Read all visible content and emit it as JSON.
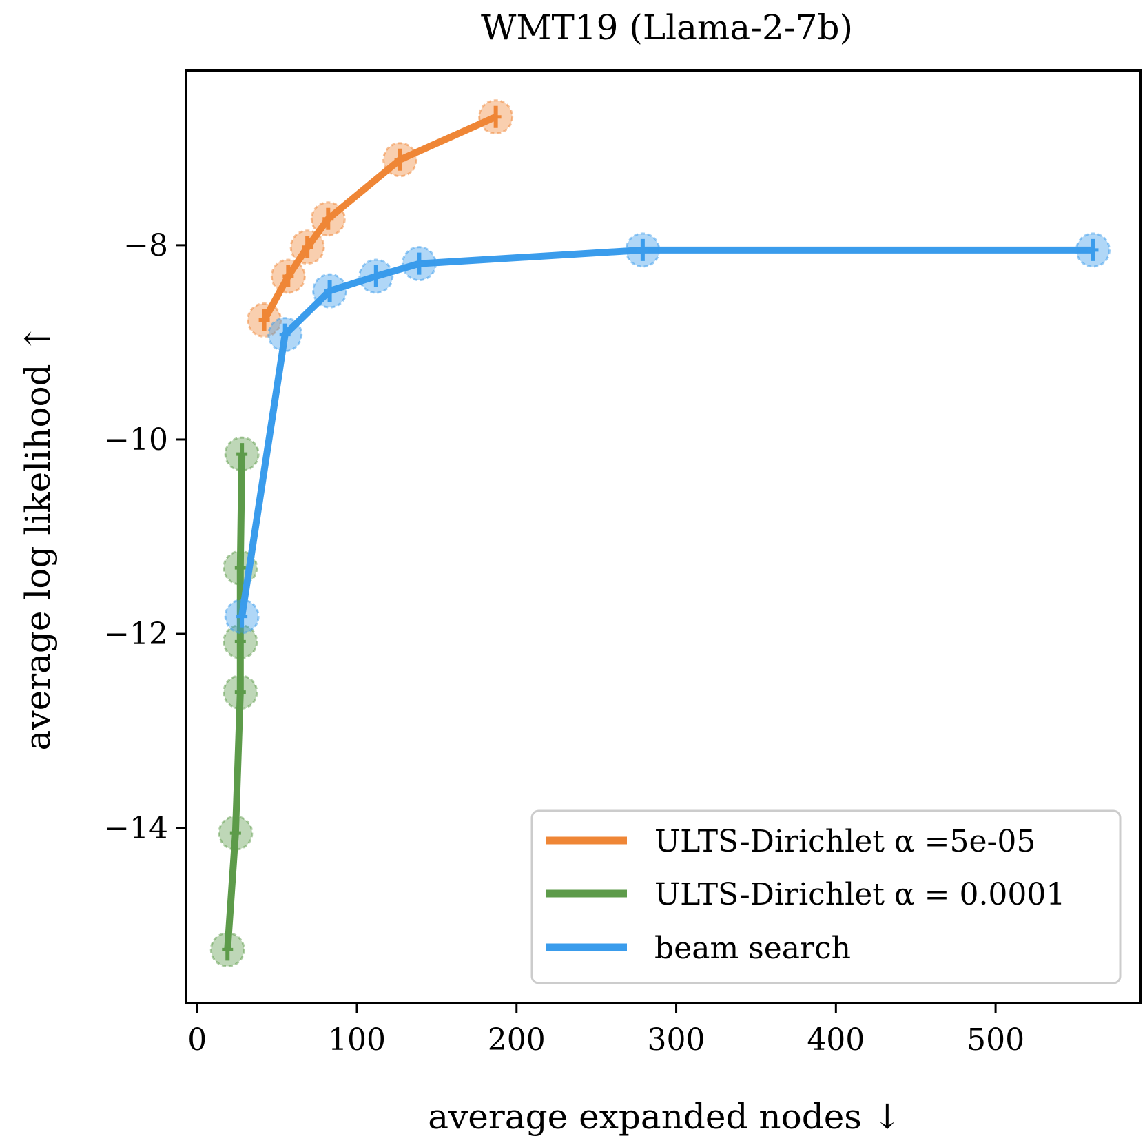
{
  "chart_data": {
    "type": "line",
    "title": "WMT19 (Llama-2-7b)",
    "xlabel": "average expanded nodes ↓",
    "ylabel": "average log likelihood ↑",
    "xlim": [
      -7,
      591
    ],
    "ylim": [
      -15.8,
      -6.2
    ],
    "xticks": [
      0,
      100,
      200,
      300,
      400,
      500
    ],
    "xtick_labels": [
      "0",
      "100",
      "200",
      "300",
      "400",
      "500"
    ],
    "yticks": [
      -14,
      -12,
      -10,
      -8
    ],
    "ytick_labels": [
      "−14",
      "−12",
      "−10",
      "−8"
    ],
    "legend_position": "lower right",
    "series": [
      {
        "name": "ULTS-Dirichlet α =5e-05",
        "color": "#ef8636",
        "x": [
          42,
          57,
          69,
          82,
          127,
          187
        ],
        "y": [
          -8.77,
          -8.32,
          -8.02,
          -7.73,
          -7.12,
          -6.68
        ]
      },
      {
        "name": "ULTS-Dirichlet α = 0.0001",
        "color": "#5d9b4a",
        "x": [
          19,
          24,
          27,
          27,
          27,
          28
        ],
        "y": [
          -15.25,
          -14.05,
          -12.6,
          -12.08,
          -11.32,
          -10.15
        ]
      },
      {
        "name": "beam search",
        "color": "#3a9cec",
        "x": [
          28,
          55,
          83,
          112,
          139,
          279,
          561
        ],
        "y": [
          -11.82,
          -8.92,
          -8.47,
          -8.32,
          -8.19,
          -8.05,
          -8.05
        ]
      }
    ]
  }
}
